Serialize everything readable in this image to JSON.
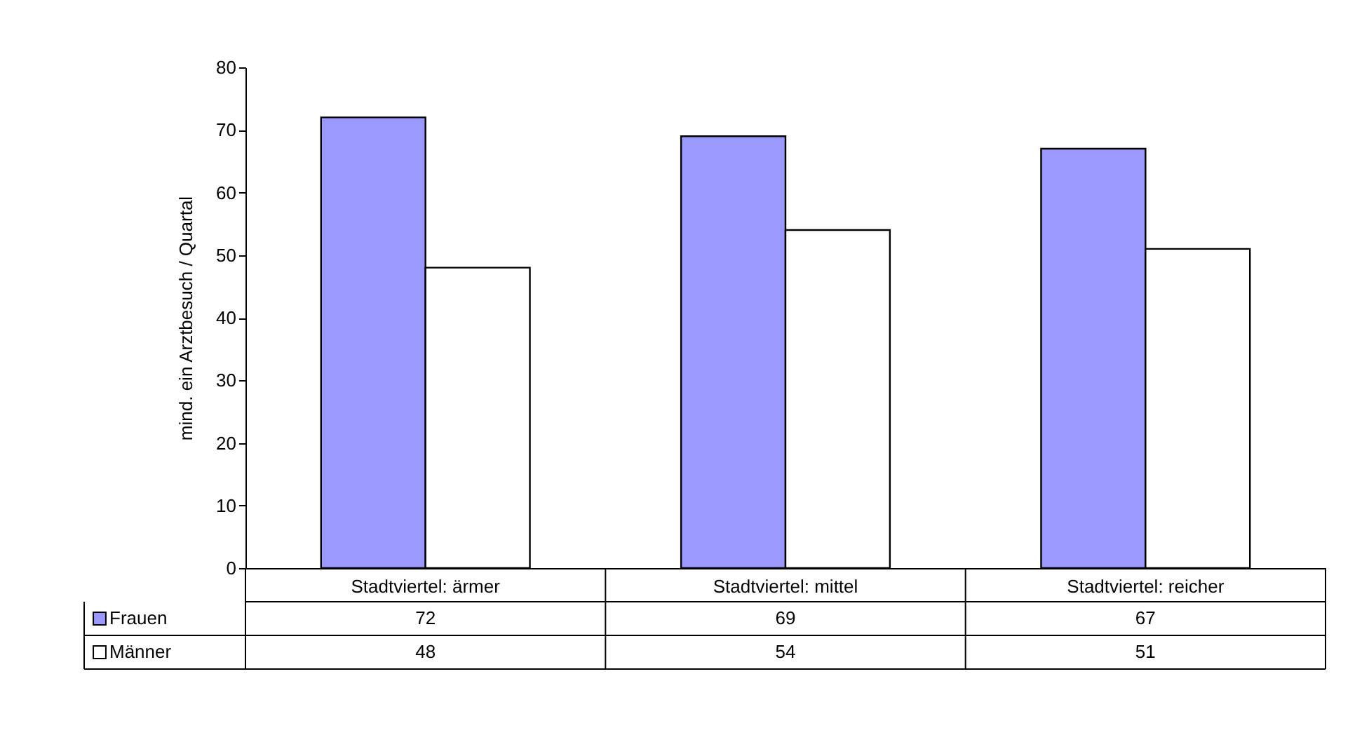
{
  "chart_data": {
    "type": "bar",
    "ylabel": "mind. ein Arztbesuch / Quartal",
    "categories": [
      "Stadtviertel: ärmer",
      "Stadtviertel: mittel",
      "Stadtviertel: reicher"
    ],
    "series": [
      {
        "name": "Frauen",
        "color": "#9999ff",
        "values": [
          72,
          69,
          67
        ]
      },
      {
        "name": "Männer",
        "color": "#ffffff",
        "values": [
          48,
          54,
          51
        ]
      }
    ],
    "ylim": [
      0,
      80
    ],
    "yticks": [
      0,
      10,
      20,
      30,
      40,
      50,
      60,
      70,
      80
    ],
    "grid": false,
    "legend": "bottom left",
    "data_labels": true
  }
}
